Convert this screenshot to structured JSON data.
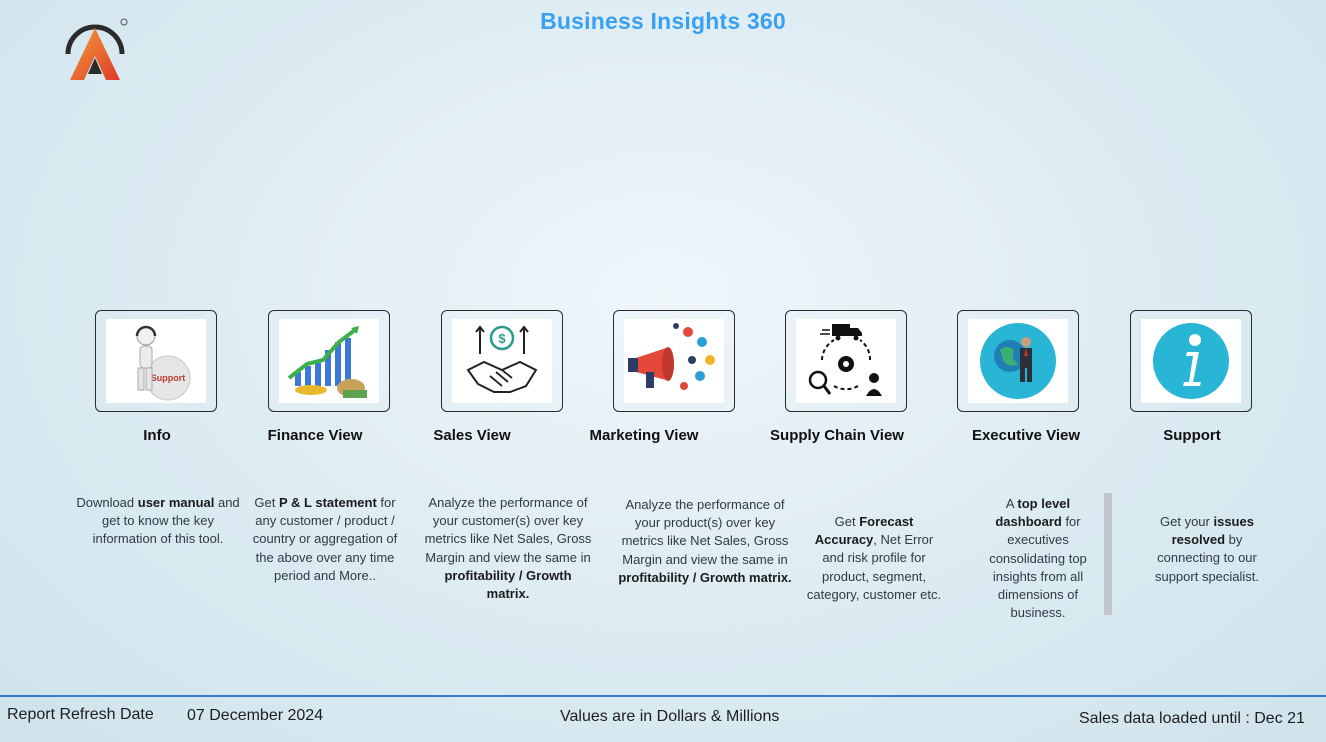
{
  "header": {
    "title": "Business Insights 360"
  },
  "cards": [
    {
      "id": "info",
      "label": "Info",
      "icon": "support-person-icon"
    },
    {
      "id": "finance",
      "label": "Finance View",
      "icon": "finance-growth-icon"
    },
    {
      "id": "sales",
      "label": "Sales View",
      "icon": "handshake-icon"
    },
    {
      "id": "marketing",
      "label": "Marketing View",
      "icon": "megaphone-icon"
    },
    {
      "id": "supply",
      "label": "Supply Chain View",
      "icon": "supply-chain-icon"
    },
    {
      "id": "executive",
      "label": "Executive View",
      "icon": "globe-executive-icon"
    },
    {
      "id": "support",
      "label": "Support",
      "icon": "info-icon"
    }
  ],
  "descriptions": {
    "info": {
      "p1": "Download ",
      "b1": "user manual",
      "p2": " and get to know the key information of this tool."
    },
    "finance": {
      "p1": "Get  ",
      "b1": "P & L statement",
      "p2": " for any customer / product / country or aggregation of the above over any time period and More.."
    },
    "sales": {
      "p1": "Analyze the performance of your customer(s) over key metrics like Net Sales, Gross Margin and view the same in ",
      "b1": "profitability / Growth matrix."
    },
    "marketing": {
      "p1": "Analyze the performance of your product(s) over key metrics like Net Sales, Gross Margin and view the same in ",
      "b1": "profitability / Growth matrix."
    },
    "supply": {
      "p1": "Get ",
      "b1": "Forecast Accuracy",
      "p2": ", Net Error and risk profile for product, segment, category, customer etc."
    },
    "executive": {
      "p1": "A ",
      "b1": "top level dashboard",
      "p2": " for executives consolidating top insights from all dimensions of business."
    },
    "support": {
      "p1": "Get your ",
      "b1": "issues resolved",
      "p2": " by connecting to our support specialist."
    }
  },
  "footer": {
    "refresh_label": "Report Refresh Date",
    "refresh_date": "07 December 2024",
    "units_note": "Values are in Dollars & Millions",
    "loaded_note": "Sales data loaded until : Dec 21"
  },
  "colors": {
    "title": "#3aa0f0",
    "footer_line": "#3a7bc8",
    "accent_teal": "#29b6d6"
  }
}
